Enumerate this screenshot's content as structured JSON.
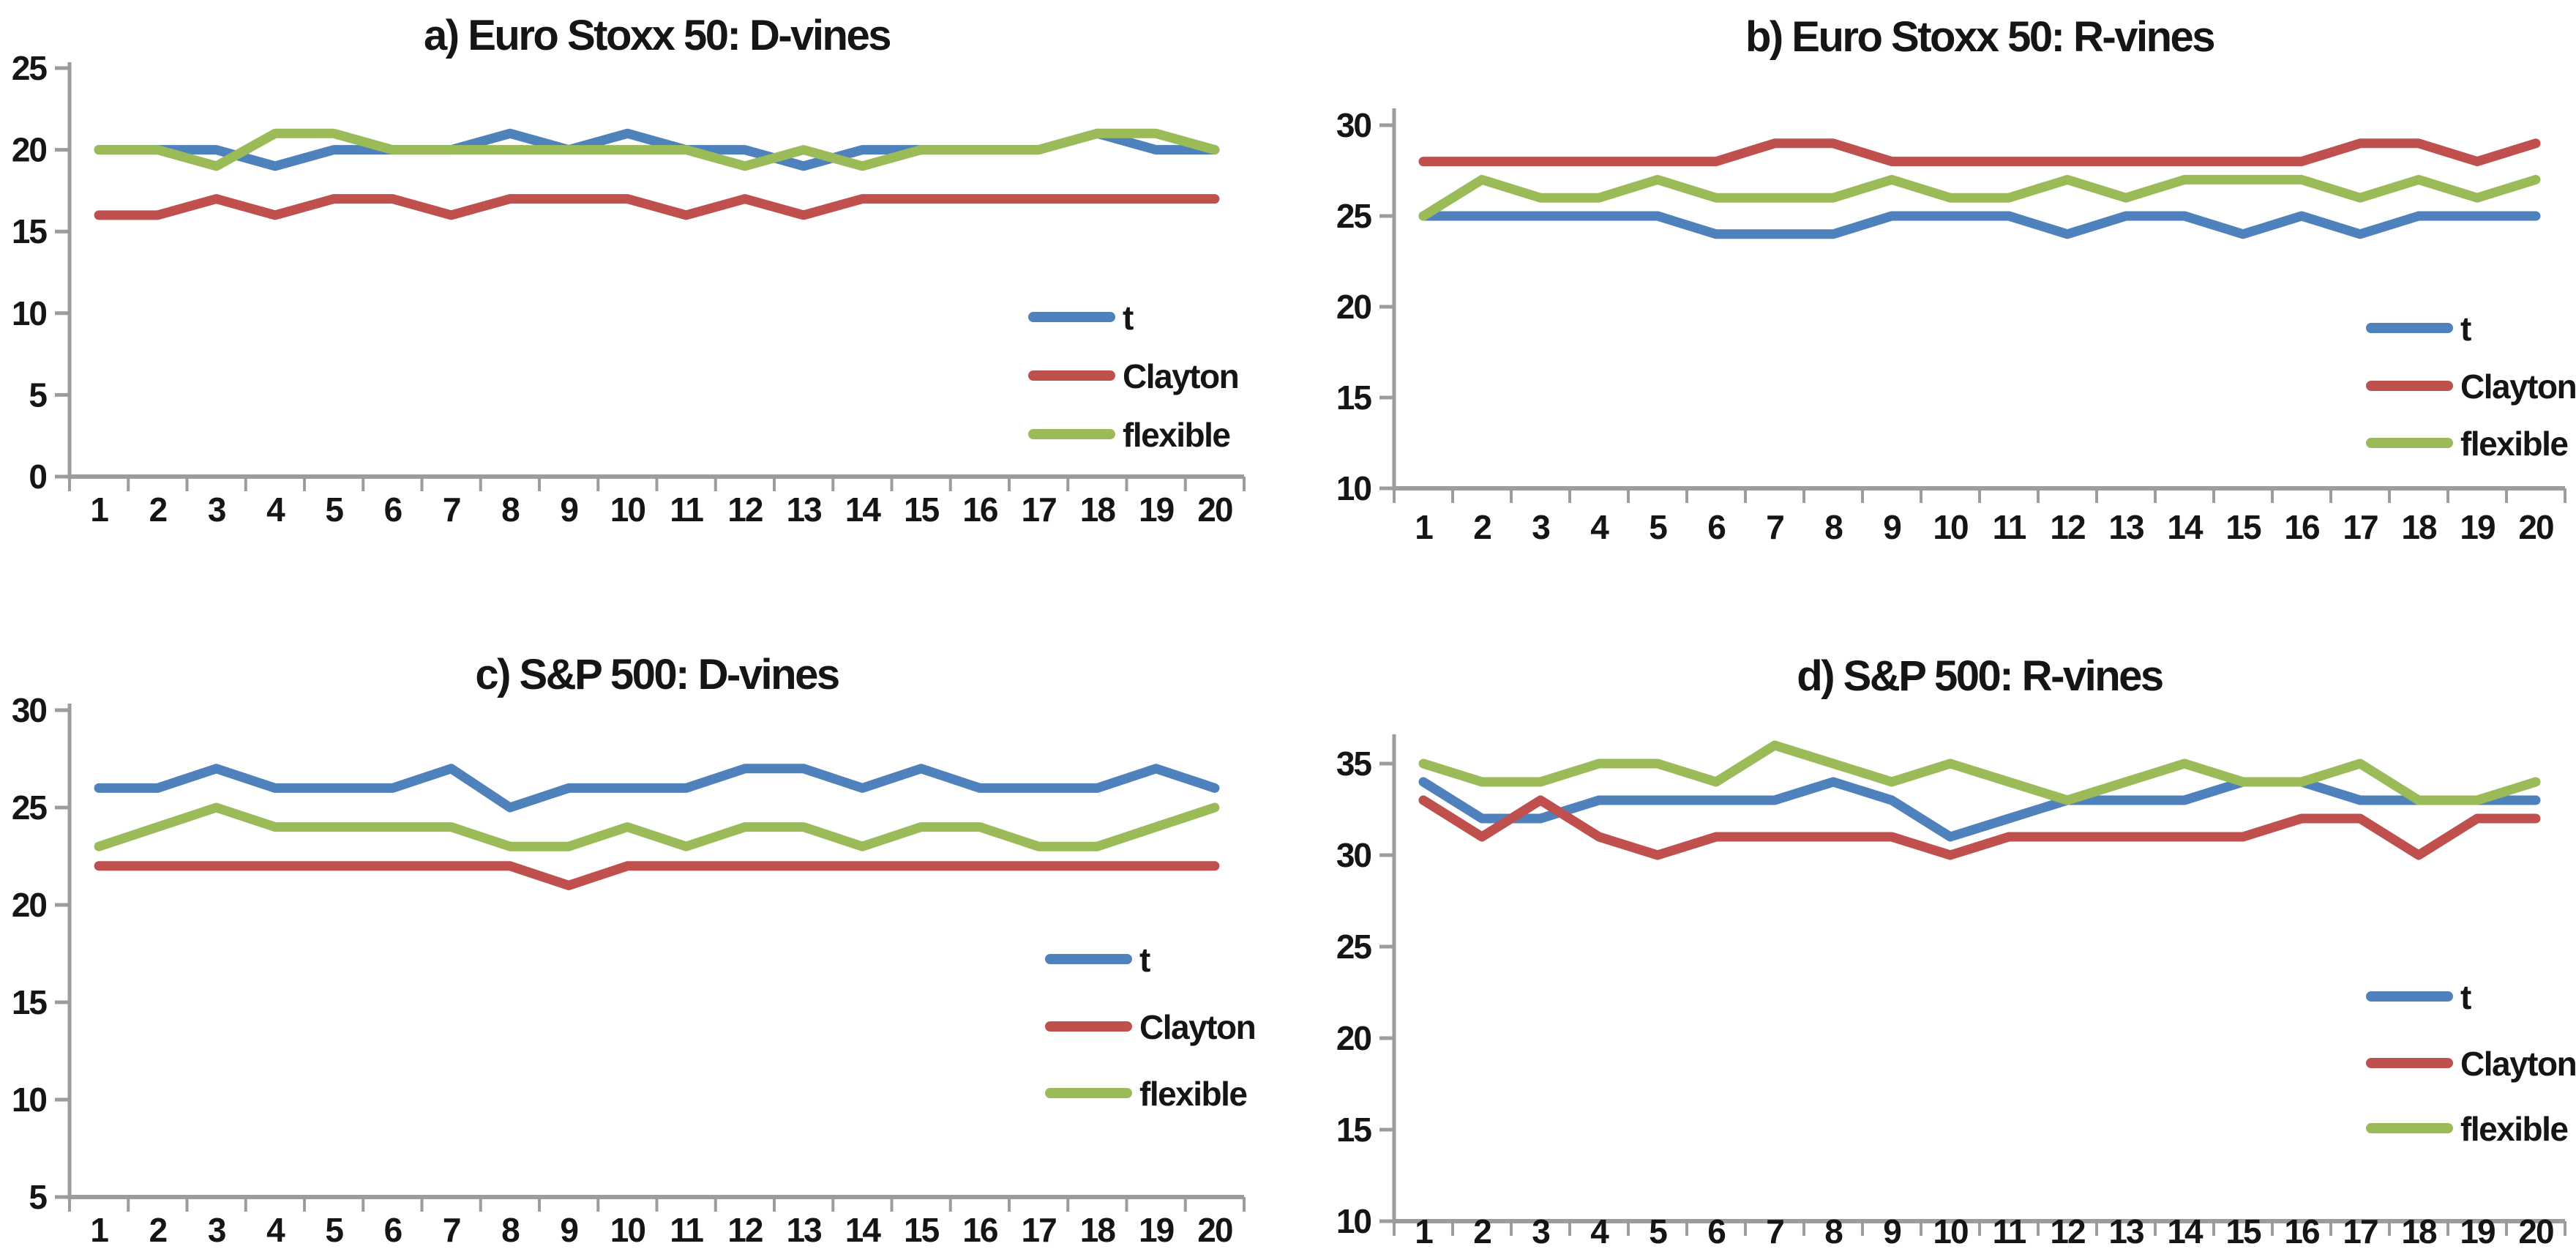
{
  "palette": {
    "t": "#4F81BD",
    "Clayton": "#C0504D",
    "flexible": "#9BBB59",
    "axis": "#9c9c9c",
    "text": "#151515",
    "background": "#ffffff"
  },
  "legend_labels": [
    "t",
    "Clayton",
    "flexible"
  ],
  "chart_data": [
    {
      "id": "a",
      "type": "line",
      "title": "a) Euro Stoxx 50: D-vines",
      "xlabel": "",
      "ylabel": "",
      "x_labels": [
        "1",
        "2",
        "3",
        "4",
        "5",
        "6",
        "7",
        "8",
        "9",
        "10",
        "11",
        "12",
        "13",
        "14",
        "15",
        "16",
        "17",
        "18",
        "19",
        "20"
      ],
      "y_ticks": [
        0,
        5,
        10,
        15,
        20,
        25
      ],
      "ylim": [
        0,
        25
      ],
      "grid": false,
      "legend_position": "inside-right",
      "series": [
        {
          "name": "t",
          "values": [
            20,
            20,
            20,
            19,
            20,
            20,
            20,
            21,
            20,
            21,
            20,
            20,
            19,
            20,
            20,
            20,
            20,
            21,
            20,
            20
          ]
        },
        {
          "name": "Clayton",
          "values": [
            16,
            16,
            17,
            16,
            17,
            17,
            16,
            17,
            17,
            17,
            16,
            17,
            16,
            17,
            17,
            17,
            17,
            17,
            17,
            17
          ]
        },
        {
          "name": "flexible",
          "values": [
            20,
            20,
            19,
            21,
            21,
            20,
            20,
            20,
            20,
            20,
            20,
            19,
            20,
            19,
            20,
            20,
            20,
            21,
            21,
            20
          ]
        }
      ]
    },
    {
      "id": "b",
      "type": "line",
      "title": "b) Euro Stoxx 50: R-vines",
      "xlabel": "",
      "ylabel": "",
      "x_labels": [
        "1",
        "2",
        "3",
        "4",
        "5",
        "6",
        "7",
        "8",
        "9",
        "10",
        "11",
        "12",
        "13",
        "14",
        "15",
        "16",
        "17",
        "18",
        "19",
        "20"
      ],
      "y_ticks": [
        10,
        15,
        20,
        25,
        30
      ],
      "ylim": [
        10,
        30
      ],
      "grid": false,
      "legend_position": "inside-right",
      "series": [
        {
          "name": "t",
          "values": [
            25,
            25,
            25,
            25,
            25,
            24,
            24,
            24,
            25,
            25,
            25,
            24,
            25,
            25,
            24,
            25,
            24,
            25,
            25,
            25
          ]
        },
        {
          "name": "Clayton",
          "values": [
            28,
            28,
            28,
            28,
            28,
            28,
            29,
            29,
            28,
            28,
            28,
            28,
            28,
            28,
            28,
            28,
            29,
            29,
            28,
            29
          ]
        },
        {
          "name": "flexible",
          "values": [
            25,
            27,
            26,
            26,
            27,
            26,
            26,
            26,
            27,
            26,
            26,
            27,
            26,
            27,
            27,
            27,
            26,
            27,
            26,
            27
          ]
        }
      ]
    },
    {
      "id": "c",
      "type": "line",
      "title": "c) S&P 500: D-vines",
      "xlabel": "",
      "ylabel": "",
      "x_labels": [
        "1",
        "2",
        "3",
        "4",
        "5",
        "6",
        "7",
        "8",
        "9",
        "10",
        "11",
        "12",
        "13",
        "14",
        "15",
        "16",
        "17",
        "18",
        "19",
        "20"
      ],
      "y_ticks": [
        5,
        10,
        15,
        20,
        25,
        30
      ],
      "ylim": [
        5,
        30
      ],
      "grid": false,
      "legend_position": "inside-right",
      "series": [
        {
          "name": "t",
          "values": [
            26,
            26,
            27,
            26,
            26,
            26,
            27,
            25,
            26,
            26,
            26,
            27,
            27,
            26,
            27,
            26,
            26,
            26,
            27,
            26
          ]
        },
        {
          "name": "Clayton",
          "values": [
            22,
            22,
            22,
            22,
            22,
            22,
            22,
            22,
            21,
            22,
            22,
            22,
            22,
            22,
            22,
            22,
            22,
            22,
            22,
            22
          ]
        },
        {
          "name": "flexible",
          "values": [
            23,
            24,
            25,
            24,
            24,
            24,
            24,
            23,
            23,
            24,
            23,
            24,
            24,
            23,
            24,
            24,
            23,
            23,
            24,
            25
          ]
        }
      ]
    },
    {
      "id": "d",
      "type": "line",
      "title": "d) S&P 500: R-vines",
      "xlabel": "",
      "ylabel": "",
      "x_labels": [
        "1",
        "2",
        "3",
        "4",
        "5",
        "6",
        "7",
        "8",
        "9",
        "10",
        "11",
        "12",
        "13",
        "14",
        "15",
        "16",
        "17",
        "18",
        "19",
        "20"
      ],
      "y_ticks": [
        10,
        15,
        20,
        25,
        30,
        35
      ],
      "ylim": [
        10,
        35
      ],
      "grid": false,
      "legend_position": "inside-right",
      "series": [
        {
          "name": "t",
          "values": [
            34,
            32,
            32,
            33,
            33,
            33,
            33,
            34,
            33,
            31,
            32,
            33,
            33,
            33,
            34,
            34,
            33,
            33,
            33,
            33
          ]
        },
        {
          "name": "Clayton",
          "values": [
            33,
            31,
            33,
            31,
            30,
            31,
            31,
            31,
            31,
            30,
            31,
            31,
            31,
            31,
            31,
            32,
            32,
            30,
            32,
            32
          ]
        },
        {
          "name": "flexible",
          "values": [
            35,
            34,
            34,
            35,
            35,
            34,
            36,
            35,
            34,
            35,
            34,
            33,
            34,
            35,
            34,
            34,
            35,
            33,
            33,
            34
          ]
        }
      ]
    }
  ]
}
